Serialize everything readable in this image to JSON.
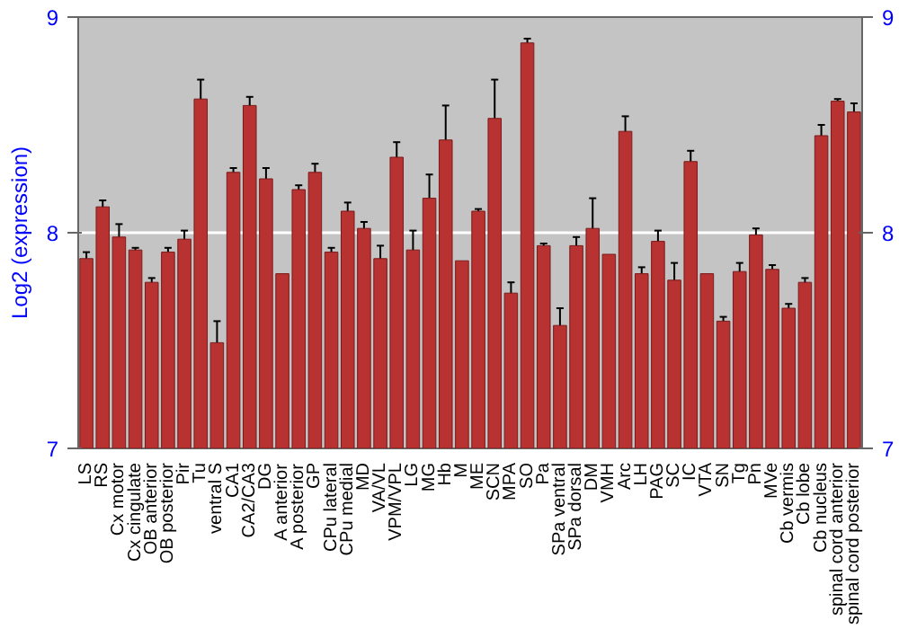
{
  "chart_data": {
    "type": "bar",
    "ylabel": "Log2 (expression)",
    "categories": [
      "LS",
      "RS",
      "Cx motor",
      "Cx cingulate",
      "OB anterior",
      "OB posterior",
      "Pir",
      "Tu",
      "ventral S",
      "CA1",
      "CA2/CA3",
      "DG",
      "A anterior",
      "A posterior",
      "GP",
      "CPu lateral",
      "CPu medial",
      "MD",
      "VA/VL",
      "VPM/VPL",
      "LG",
      "MG",
      "Hb",
      "M",
      "ME",
      "SCN",
      "MPA",
      "SO",
      "Pa",
      "SPa ventral",
      "SPa dorsal",
      "DM",
      "VMH",
      "Arc",
      "LH",
      "PAG",
      "SC",
      "IC",
      "VTA",
      "SN",
      "Tg",
      "Pn",
      "MVe",
      "Cb vermis",
      "Cb lobe",
      "Cb nucleus",
      "spinal cord anterior",
      "spinal cord posterior"
    ],
    "values": [
      7.88,
      8.12,
      7.98,
      7.92,
      7.77,
      7.91,
      7.97,
      8.62,
      7.49,
      8.28,
      8.59,
      8.25,
      7.81,
      8.2,
      8.28,
      7.91,
      8.1,
      8.02,
      7.88,
      8.35,
      7.92,
      8.16,
      8.43,
      7.87,
      8.1,
      8.53,
      7.72,
      8.88,
      7.94,
      7.57,
      7.94,
      8.02,
      7.9,
      8.47,
      7.81,
      7.96,
      7.78,
      8.33,
      7.81,
      7.59,
      7.82,
      7.99,
      7.83,
      7.65,
      7.77,
      8.45,
      8.61,
      8.56
    ],
    "errors": [
      0.03,
      0.03,
      0.06,
      0.01,
      0.02,
      0.02,
      0.04,
      0.09,
      0.1,
      0.02,
      0.04,
      0.05,
      null,
      0.02,
      0.04,
      0.02,
      0.04,
      0.03,
      0.06,
      0.07,
      0.09,
      0.11,
      0.16,
      null,
      0.01,
      0.18,
      0.05,
      0.02,
      0.01,
      0.08,
      0.04,
      0.14,
      null,
      0.07,
      0.03,
      0.05,
      0.08,
      0.05,
      null,
      0.02,
      0.04,
      0.03,
      0.02,
      0.02,
      0.02,
      0.05,
      0.01,
      0.04
    ],
    "color": "#b83232",
    "ylim": [
      7,
      9
    ],
    "yticks": [
      7,
      8,
      9
    ],
    "y2lim": [
      7,
      9
    ],
    "y2ticks": [
      7,
      8,
      9
    ],
    "grid": "y"
  }
}
